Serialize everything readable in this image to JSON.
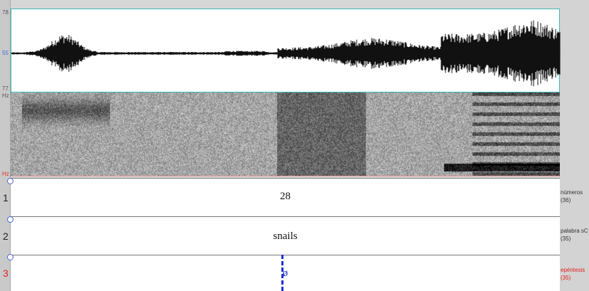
{
  "waveform": {
    "scale_top": "78",
    "scale_mid": "55",
    "scale_bottom": "77"
  },
  "spectrogram": {
    "scale_top": "Hz",
    "scale_bottom": "Hz"
  },
  "tiers": [
    {
      "number": "1",
      "text": "28",
      "name": "números",
      "count": "(36)",
      "active": false
    },
    {
      "number": "2",
      "text": "snails",
      "name": "palabra sC",
      "count": "(35)",
      "active": false
    },
    {
      "number": "3",
      "text": "ø",
      "name": "epéntesis",
      "count": "(35)",
      "active": true
    }
  ],
  "colors": {
    "waveform_border": "#3fb7b7",
    "selection_boundary": "#1a2fd0",
    "active_tier": "#e02020"
  }
}
